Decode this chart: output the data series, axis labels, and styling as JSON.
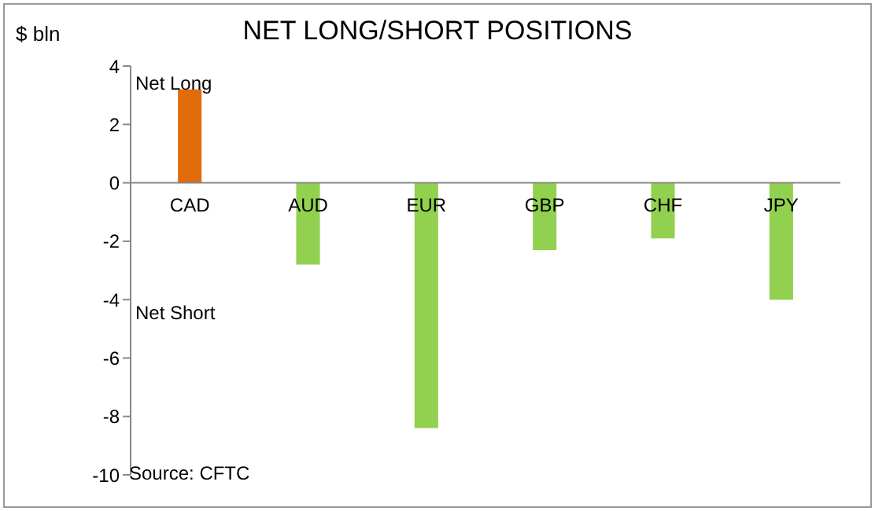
{
  "chart_data": {
    "type": "bar",
    "title": "NET LONG/SHORT POSITIONS",
    "ylabel": "$ bln",
    "categories": [
      "CAD",
      "AUD",
      "EUR",
      "GBP",
      "CHF",
      "JPY"
    ],
    "values": [
      3.2,
      -2.8,
      -8.4,
      -2.3,
      -1.9,
      -4.0
    ],
    "colors": [
      "#e36c0a",
      "#92d050",
      "#92d050",
      "#92d050",
      "#92d050",
      "#92d050"
    ],
    "ylim": [
      -10,
      4
    ],
    "yticks": [
      -10,
      -8,
      -6,
      -4,
      -2,
      0,
      2,
      4
    ],
    "annotations": [
      "Net Long",
      "Net Short",
      "Source: CFTC"
    ]
  }
}
